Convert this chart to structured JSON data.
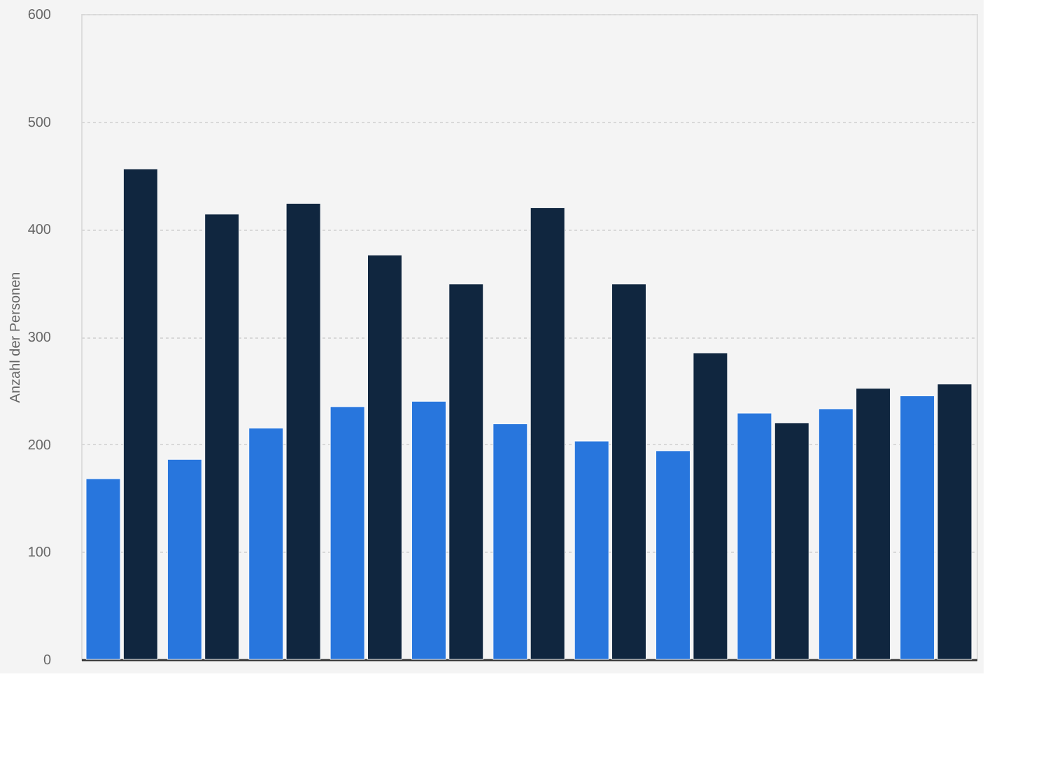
{
  "chart_data": {
    "type": "bar",
    "ylabel": "Anzahl der Personen",
    "categories": [
      null,
      null,
      null,
      null,
      null,
      null,
      null,
      null,
      null,
      null,
      null
    ],
    "series": [
      {
        "color": "#2876dd",
        "values": [
          168,
          186,
          215,
          235,
          240,
          219,
          203,
          194,
          229,
          233,
          245
        ]
      },
      {
        "color": "#10263f",
        "values": [
          456,
          414,
          424,
          376,
          349,
          420,
          349,
          285,
          220,
          252,
          256
        ]
      }
    ],
    "ylim": [
      0,
      600
    ],
    "yticks": [
      0,
      100,
      200,
      300,
      400,
      500,
      600
    ],
    "grid": "y"
  }
}
